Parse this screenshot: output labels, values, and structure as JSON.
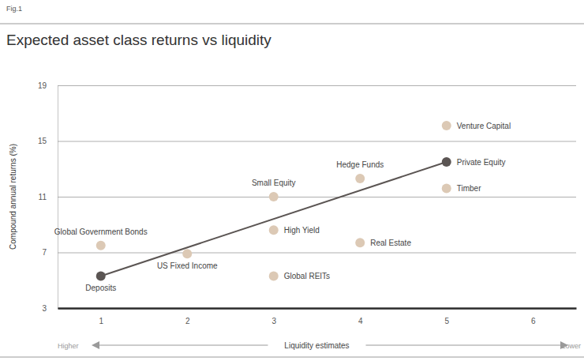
{
  "chart_data": {
    "type": "scatter",
    "figure_label": "Fig.1",
    "title": "Expected asset class returns vs liquidity",
    "ylabel": "Compound annual returns (%)",
    "xlabel": "Liquidity estimates",
    "annotations": [
      "Higher",
      "Lower"
    ],
    "xlim": [
      0.5,
      6.5
    ],
    "xticks": [
      1,
      2,
      3,
      4,
      5,
      6
    ],
    "ylim": [
      3,
      19
    ],
    "yticks": [
      3,
      7,
      11,
      15,
      19
    ],
    "grid": true,
    "series": [
      {
        "type": "scatter",
        "color": "#dcc9b5",
        "marker": "circle",
        "x": [
          1,
          2,
          3,
          3,
          3,
          4,
          4,
          5,
          5
        ],
        "values": [
          7.5,
          6.9,
          11.0,
          8.6,
          5.3,
          12.3,
          7.7,
          16.1,
          11.6
        ],
        "labels": [
          "Global Government Bonds",
          "US Fixed Income",
          "Small Equity",
          "High Yield",
          "Global REITs",
          "Hedge Funds",
          "Real Estate",
          "Venture Capital",
          "Timber"
        ]
      },
      {
        "type": "line",
        "color": "#5b5553",
        "marker": "circle",
        "line_style": "solid",
        "x": [
          1,
          5
        ],
        "values": [
          5.3,
          13.5
        ],
        "labels": [
          "Deposits",
          "Private Equity"
        ]
      }
    ]
  }
}
